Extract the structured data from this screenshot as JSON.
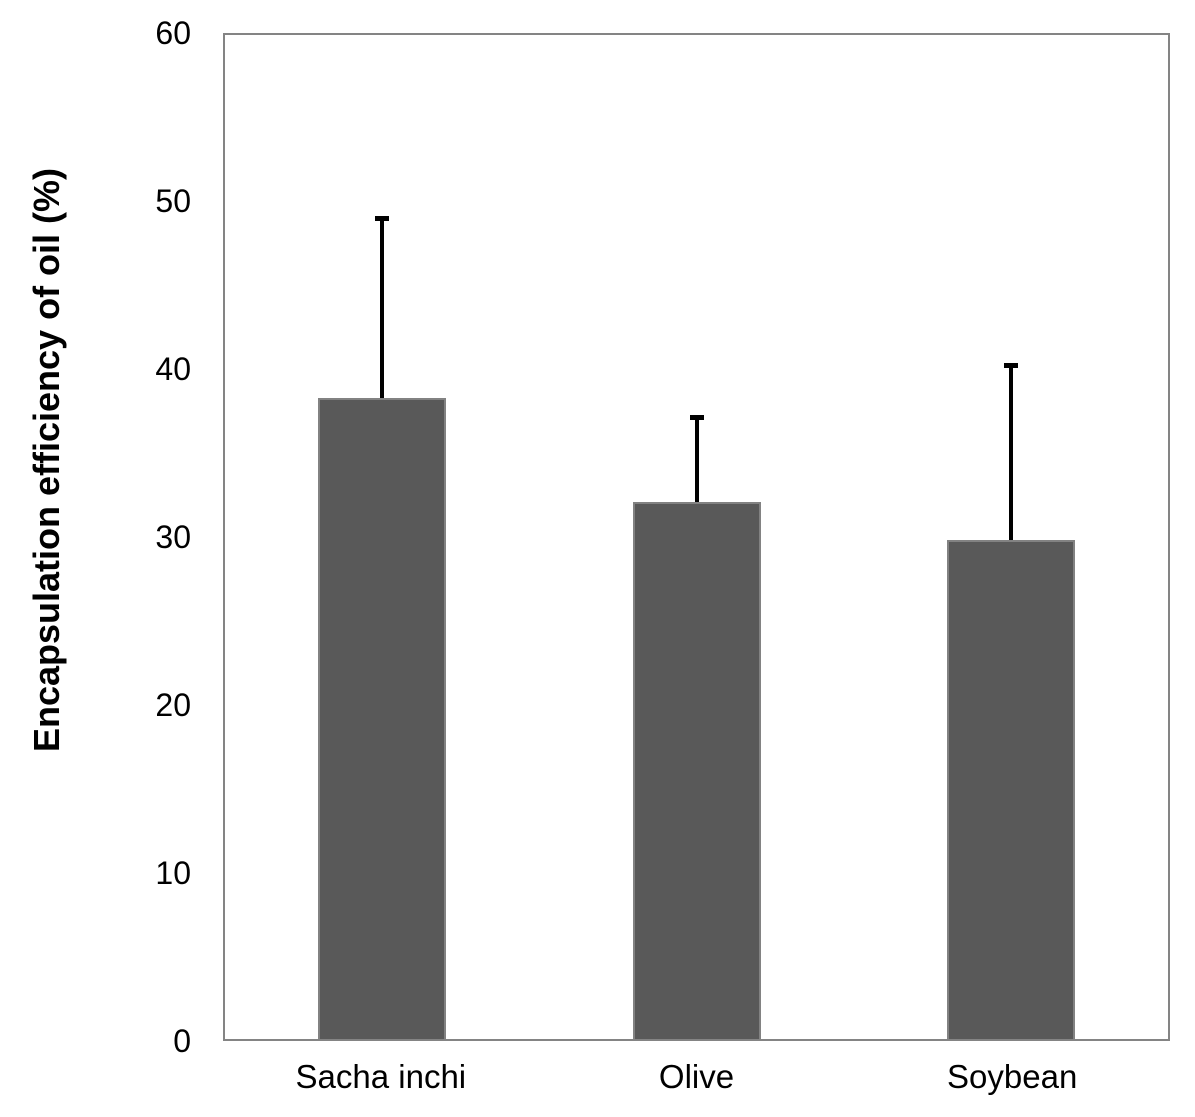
{
  "chart_data": {
    "type": "bar",
    "title": "",
    "xlabel": "",
    "ylabel": "Encapsulation efficiency of oil (%)",
    "categories": [
      "Sacha inchi",
      "Olive",
      "Soybean"
    ],
    "values": [
      38.3,
      32.1,
      29.8
    ],
    "errors_plus": [
      10.9,
      5.2,
      10.6
    ],
    "ylim": [
      0,
      60
    ],
    "yticks": [
      0,
      10,
      20,
      30,
      40,
      50,
      60
    ],
    "grid": false,
    "legend_position": "none",
    "bar_color": "#595959",
    "bar_border_color": "#828282",
    "error_bar_color": "#000000",
    "axis_border_color": "#848484",
    "text_color": "#000000",
    "background_color": "#ffffff"
  }
}
